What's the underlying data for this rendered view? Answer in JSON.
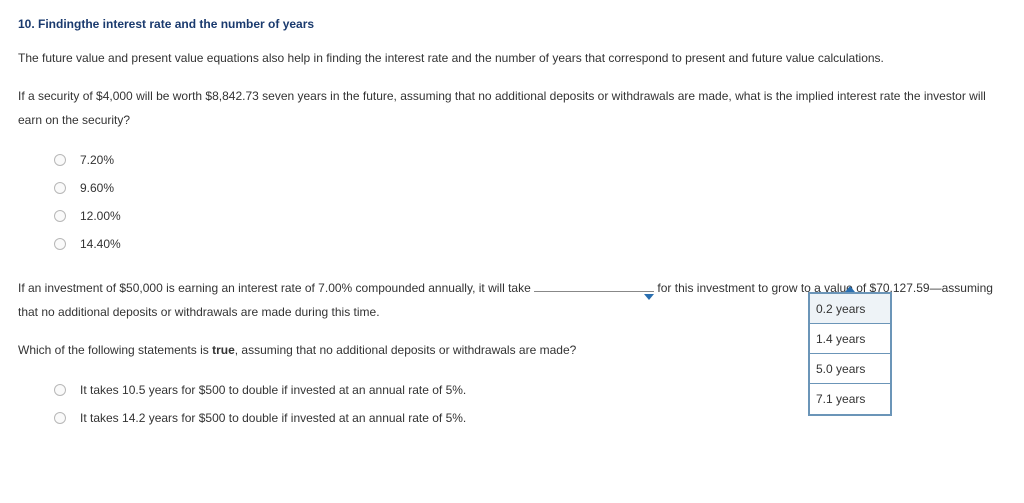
{
  "heading": "10. Findingthe interest rate and the number of years",
  "intro": "The future value and present value equations also help in finding the interest rate and the number of years that correspond to present and future value calculations.",
  "q1": {
    "text": "If a security of $4,000 will be worth $8,842.73 seven years in the future, assuming that no additional deposits or withdrawals are made, what is the implied interest rate the investor will earn on the security?",
    "options": [
      "7.20%",
      "9.60%",
      "12.00%",
      "14.40%"
    ]
  },
  "q2": {
    "part1": "If an investment of $50,000 is earning an interest rate of 7.00% compounded annually, it will take ",
    "part2": " for this investment to grow to a value of $70,127.59—assuming that no additional deposits or withdrawals are made during this time.",
    "dropdown_options": [
      "0.2 years",
      "1.4 years",
      "5.0 years",
      "7.1 years"
    ]
  },
  "q3": {
    "lead": "Which of the following statements is ",
    "bold": "true",
    "tail": ", assuming that no additional deposits or withdrawals are made?",
    "options": [
      "It takes 10.5 years for $500 to double if invested at an annual rate of 5%.",
      "It takes 14.2 years for $500 to double if invested at an annual rate of 5%."
    ]
  },
  "colors": {
    "heading": "#1a3a6e",
    "text": "#333333",
    "radio_border": "#b8b8b8",
    "dropdown_border": "#6b95b8",
    "caret": "#2a6fb0",
    "background": "#ffffff"
  }
}
